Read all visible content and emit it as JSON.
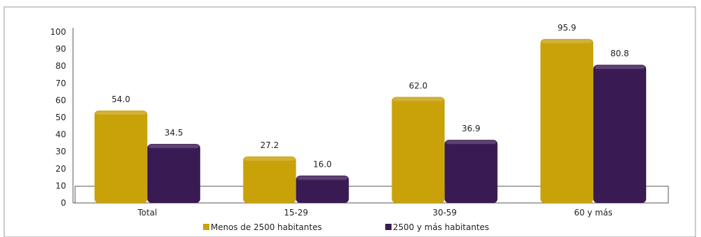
{
  "chart_data": {
    "type": "bar",
    "categories": [
      "Total",
      "15-29",
      "30-59",
      "60 y más"
    ],
    "series": [
      {
        "name": "Menos de 2500 habitantes",
        "values": [
          54.0,
          27.2,
          62.0,
          95.9
        ],
        "color": "#c9a20a"
      },
      {
        "name": "2500 y más habitantes",
        "values": [
          34.5,
          16.0,
          36.9,
          80.8
        ],
        "color": "#3a1a52"
      }
    ],
    "ylim": [
      0,
      100
    ],
    "yticks": [
      "0",
      "10",
      "20",
      "30",
      "40",
      "50",
      "60",
      "70",
      "80",
      "90",
      "100"
    ],
    "value_labels": [
      [
        "54.0",
        "27.2",
        "62.0",
        "95.9"
      ],
      [
        "34.5",
        "16.0",
        "36.9",
        "80.8"
      ]
    ],
    "grid": false,
    "legend_position": "bottom"
  }
}
